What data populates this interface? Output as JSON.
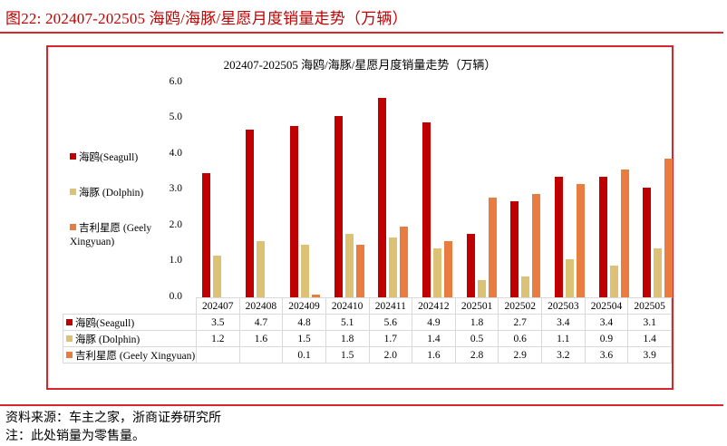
{
  "figure": {
    "title": "图22:   202407-202505 海鸥/海豚/星愿月度销量走势（万辆）"
  },
  "footer": {
    "source": "资料来源：车主之家，浙商证券研究所",
    "note": "注：此处销量为零售量。"
  },
  "colors": {
    "rule": "#d9262c",
    "seagull": "#c00000",
    "dolphin": "#dcc275",
    "xingyuan": "#e97d3f"
  },
  "chart_data": {
    "type": "bar",
    "title": "202407-202505 海鸥/海豚/星愿月度销量走势（万辆）",
    "xlabel": "",
    "ylabel": "",
    "ylim": [
      0,
      6
    ],
    "yticks": [
      "6.0",
      "5.0",
      "4.0",
      "3.0",
      "2.0",
      "1.0",
      "0.0"
    ],
    "grid": false,
    "legend_position": "left",
    "categories": [
      "202407",
      "202408",
      "202409",
      "202410",
      "202411",
      "202412",
      "202501",
      "202502",
      "202503",
      "202504",
      "202505"
    ],
    "series": [
      {
        "name": "海鸥(Seagull)",
        "table_label": "海鸥(Seagull)",
        "legend_label": "海鸥(Seagull)",
        "values": [
          3.5,
          4.7,
          4.8,
          5.1,
          5.6,
          4.9,
          1.8,
          2.7,
          3.4,
          3.4,
          3.1
        ],
        "display": [
          "3.5",
          "4.7",
          "4.8",
          "5.1",
          "5.6",
          "4.9",
          "1.8",
          "2.7",
          "3.4",
          "3.4",
          "3.1"
        ]
      },
      {
        "name": "海豚 (Dolphin)",
        "table_label": "海豚 (Dolphin)",
        "legend_label": "海豚 (Dolphin)",
        "values": [
          1.2,
          1.6,
          1.5,
          1.8,
          1.7,
          1.4,
          0.5,
          0.6,
          1.1,
          0.9,
          1.4
        ],
        "display": [
          "1.2",
          "1.6",
          "1.5",
          "1.8",
          "1.7",
          "1.4",
          "0.5",
          "0.6",
          "1.1",
          "0.9",
          "1.4"
        ]
      },
      {
        "name": "吉利星愿 (Geely Xingyuan)",
        "table_label": "吉利星愿 (Geely Xingyuan)",
        "legend_label_line1": "吉利星愿 (Geely",
        "legend_label_line2": "Xingyuan)",
        "values": [
          null,
          null,
          0.1,
          1.5,
          2.0,
          1.6,
          2.8,
          2.9,
          3.2,
          3.6,
          3.9
        ],
        "display": [
          "",
          "",
          "0.1",
          "1.5",
          "2.0",
          "1.6",
          "2.8",
          "2.9",
          "3.2",
          "3.6",
          "3.9"
        ]
      }
    ]
  }
}
